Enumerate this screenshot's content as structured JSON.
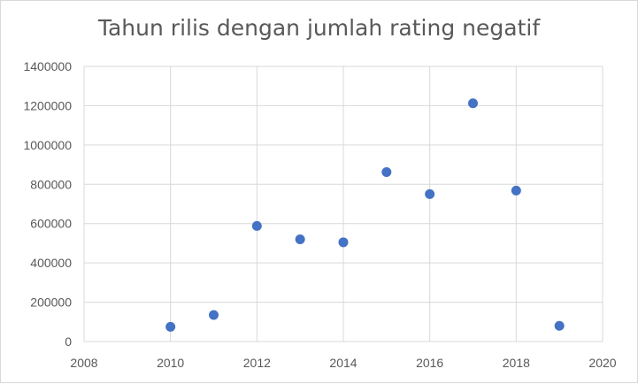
{
  "chart_data": {
    "type": "scatter",
    "title": "Tahun rilis dengan jumlah rating negatif",
    "xlabel": "",
    "ylabel": "",
    "xlim": [
      2008,
      2020
    ],
    "ylim": [
      0,
      1400000
    ],
    "x_ticks": [
      2008,
      2010,
      2012,
      2014,
      2016,
      2018,
      2020
    ],
    "y_ticks": [
      0,
      200000,
      400000,
      600000,
      800000,
      1000000,
      1200000,
      1400000
    ],
    "grid": true,
    "legend": "none",
    "marker_color": "#4472c4",
    "points": [
      {
        "x": 2010,
        "y": 75000
      },
      {
        "x": 2011,
        "y": 135000
      },
      {
        "x": 2012,
        "y": 588000
      },
      {
        "x": 2013,
        "y": 520000
      },
      {
        "x": 2014,
        "y": 505000
      },
      {
        "x": 2015,
        "y": 862000
      },
      {
        "x": 2016,
        "y": 750000
      },
      {
        "x": 2017,
        "y": 1212000
      },
      {
        "x": 2018,
        "y": 768000
      },
      {
        "x": 2019,
        "y": 80000
      }
    ]
  }
}
